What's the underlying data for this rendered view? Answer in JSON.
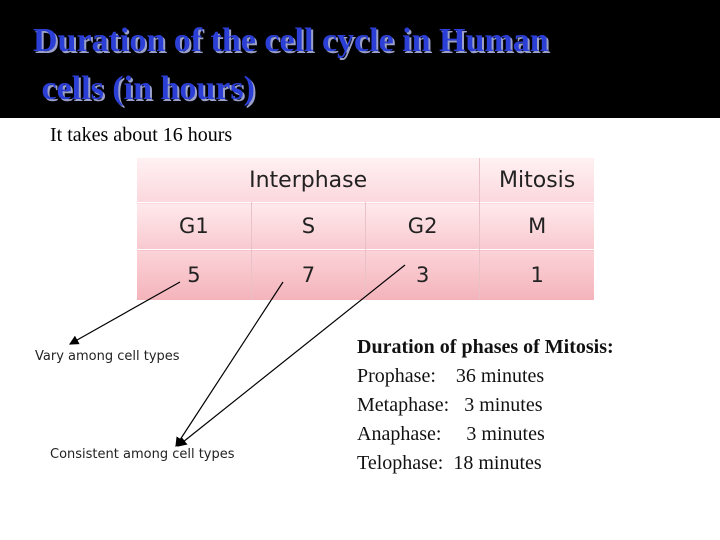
{
  "title": {
    "line1": "Duration of the cell cycle in Human",
    "line2": " cells (in hours)"
  },
  "subtitle": "It takes about 16 hours",
  "table": {
    "group_interphase": "Interphase",
    "group_mitosis": "Mitosis",
    "phases": [
      "G1",
      "S",
      "G2",
      "M"
    ],
    "hours": [
      "5",
      "7",
      "3",
      "1"
    ]
  },
  "labels": {
    "vary": "Vary among cell types",
    "consistent": "Consistent among cell types"
  },
  "mitosis_phases": {
    "heading": "Duration of phases of Mitosis:",
    "rows": [
      "Prophase:    36 minutes",
      "Metaphase:   3 minutes",
      "Anaphase:     3 minutes",
      "Telophase:  18 minutes"
    ]
  },
  "colors": {
    "title_text": "#2b3fd6",
    "title_background": "#000000",
    "table_fill": "#f8c9cf"
  }
}
